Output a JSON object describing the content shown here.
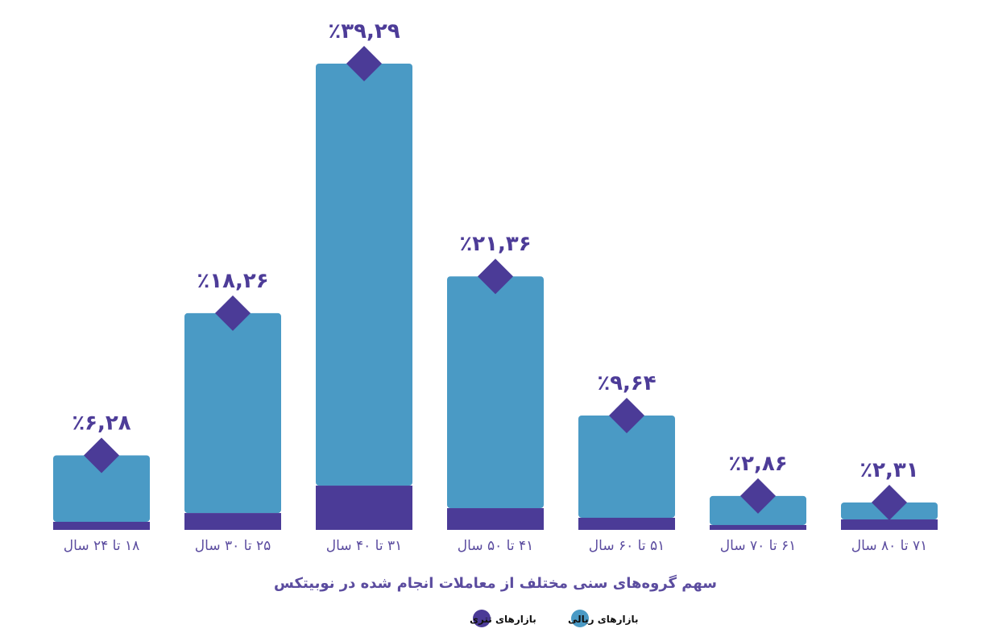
{
  "chart_data": {
    "type": "bar",
    "stacked": true,
    "title": "سهم گروه‌های سنی مختلف از معاملات انجام شده در نوبیتکس",
    "categories": [
      "۱۸ تا ۲۴ سال",
      "۲۵ تا ۳۰ سال",
      "۳۱ تا ۴۰ سال",
      "۴۱ تا ۵۰ سال",
      "۵۱ تا ۶۰ سال",
      "۶۱ تا ۷۰ سال",
      "۷۱ تا ۸۰ سال"
    ],
    "totals": [
      6.28,
      18.26,
      39.29,
      21.36,
      9.64,
      2.86,
      2.31
    ],
    "total_labels": [
      "٪۶,۲۸",
      "٪۱۸,۲۶",
      "٪۳۹,۲۹",
      "٪۲۱,۳۶",
      "٪۹,۶۴",
      "٪۲,۸۶",
      "٪۲,۳۱"
    ],
    "series": [
      {
        "name": "بازارهای ریالی",
        "color": "#4a9ac5",
        "values": [
          5.6,
          16.84,
          35.56,
          19.53,
          8.62,
          2.45,
          1.43
        ]
      },
      {
        "name": "بازارهای تتری",
        "color": "#4b3b97",
        "values": [
          0.68,
          1.42,
          3.73,
          1.83,
          1.02,
          0.41,
          0.88
        ]
      }
    ],
    "ylim": [
      0,
      40
    ],
    "grid": false,
    "legend_position": "bottom-center",
    "xlabel": "",
    "ylabel": ""
  }
}
